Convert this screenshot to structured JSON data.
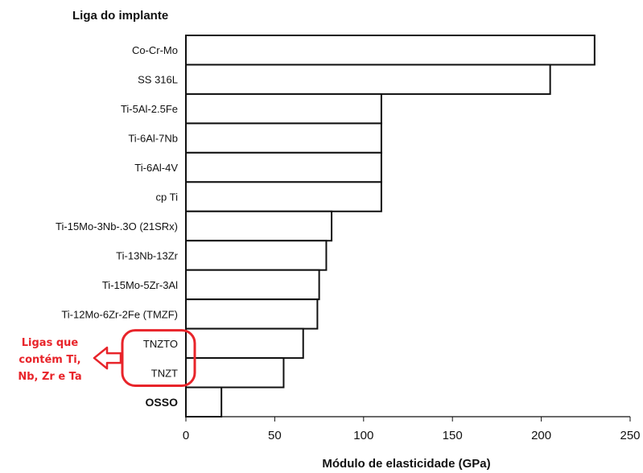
{
  "chart_data": {
    "type": "bar",
    "orientation": "horizontal",
    "title": "",
    "ylabel": "Liga do implante",
    "xlabel": "Módulo de elasticidade (GPa)",
    "xlim": [
      0,
      250
    ],
    "xticks": [
      0,
      50,
      100,
      150,
      200,
      250
    ],
    "grid": false,
    "categories": [
      "Co-Cr-Mo",
      "SS 316L",
      "Ti-5Al-2.5Fe",
      "Ti-6Al-7Nb",
      "Ti-6Al-4V",
      "cp Ti",
      "Ti-15Mo-3Nb-.3O (21SRx)",
      "Ti-13Nb-13Zr",
      "Ti-15Mo-5Zr-3Al",
      "Ti-12Mo-6Zr-2Fe (TMZF)",
      "TNZTO",
      "TNZT",
      "OSSO"
    ],
    "values": [
      230,
      205,
      110,
      110,
      110,
      110,
      82,
      79,
      75,
      74,
      66,
      55,
      20
    ],
    "bar_color": "#ffffff",
    "edge_color": "#111111"
  },
  "annotation": {
    "lines": [
      "Ligas que",
      "contém Ti,",
      "Nb, Zr e Ta"
    ],
    "highlighted_categories": [
      "TNZTO",
      "TNZT"
    ],
    "color": "#e8242a"
  }
}
